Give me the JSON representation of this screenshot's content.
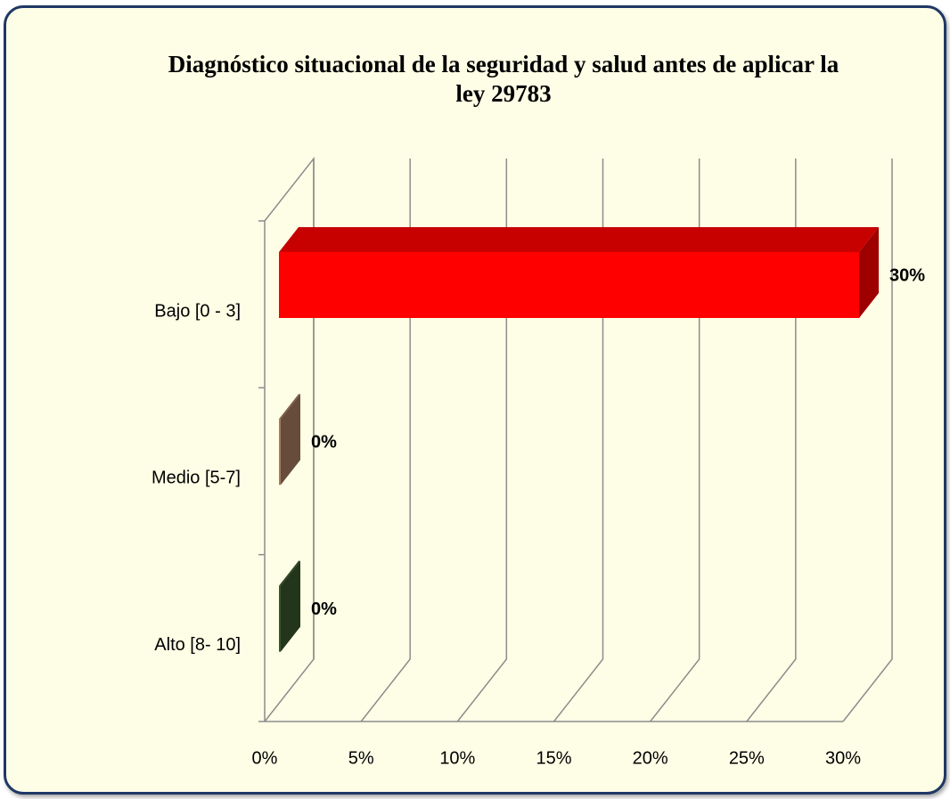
{
  "chart_data": {
    "type": "bar3d-horizontal",
    "title": "Diagnóstico situacional de la seguridad y salud antes de aplicar la ley 29783",
    "categories": [
      "Bajo [0 - 3]",
      "Medio [5-7]",
      "Alto [8- 10]"
    ],
    "values": [
      30,
      0,
      0
    ],
    "value_labels": [
      "30%",
      "0%",
      "0%"
    ],
    "colors": [
      "#ff0000",
      "#a67b5f",
      "#38562a"
    ],
    "xlim": [
      0,
      30
    ],
    "xticks": [
      {
        "value": 0,
        "label": "0%"
      },
      {
        "value": 5,
        "label": "5%"
      },
      {
        "value": 10,
        "label": "10%"
      },
      {
        "value": 15,
        "label": "15%"
      },
      {
        "value": 20,
        "label": "20%"
      },
      {
        "value": 25,
        "label": "25%"
      },
      {
        "value": 30,
        "label": "30%"
      }
    ],
    "grid": true
  }
}
